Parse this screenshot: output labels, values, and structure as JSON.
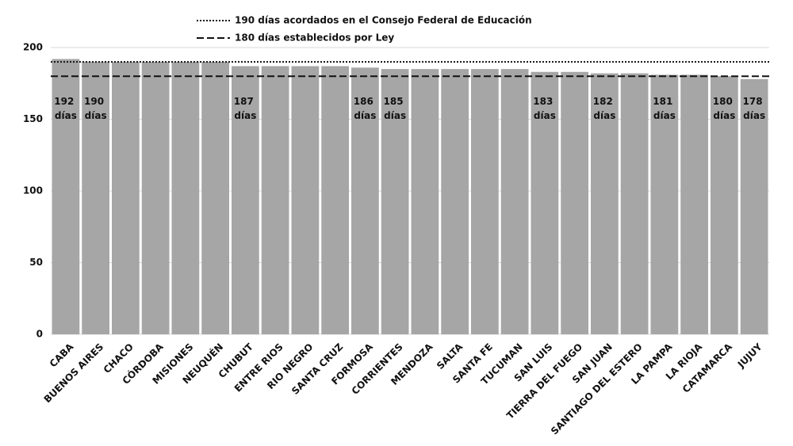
{
  "chart_data": {
    "type": "bar",
    "categories": [
      "CABA",
      "BUENOS AIRES",
      "CHACO",
      "CÓRDOBA",
      "MISIONES",
      "NEUQUÉN",
      "CHUBUT",
      "ENTRE RIOS",
      "RIO NEGRO",
      "SANTA CRUZ",
      "FORMOSA",
      "CORRIENTES",
      "MENDOZA",
      "SALTA",
      "SANTA FE",
      "TUCUMAN",
      "SAN LUIS",
      "TIERRA DEL FUEGO",
      "SAN JUAN",
      "SANTIAGO DEL ESTERO",
      "LA PAMPA",
      "LA RIOJA",
      "CATAMARCA",
      "JUJUY"
    ],
    "values": [
      192,
      190,
      190,
      190,
      190,
      190,
      187,
      187,
      187,
      187,
      186,
      185,
      185,
      185,
      185,
      185,
      183,
      183,
      182,
      182,
      181,
      181,
      180,
      178
    ],
    "value_labels": [
      "192 días",
      "190 días",
      null,
      null,
      null,
      null,
      "187 días",
      null,
      null,
      null,
      "186 días",
      "185 días",
      null,
      null,
      null,
      null,
      "183 días",
      null,
      "182 días",
      null,
      "181 días",
      null,
      "180 días",
      "178 días"
    ],
    "color": "#a6a6a6",
    "ylim": [
      0,
      200
    ],
    "yticks": [
      0,
      50,
      100,
      150,
      200
    ],
    "grid": true,
    "reference_lines": [
      {
        "name": "190 días acordados en el Consejo Federal de Educación",
        "value": 190,
        "style": "dotted"
      },
      {
        "name": "180 días establecidos por Ley",
        "value": 180,
        "style": "dashed"
      }
    ]
  }
}
